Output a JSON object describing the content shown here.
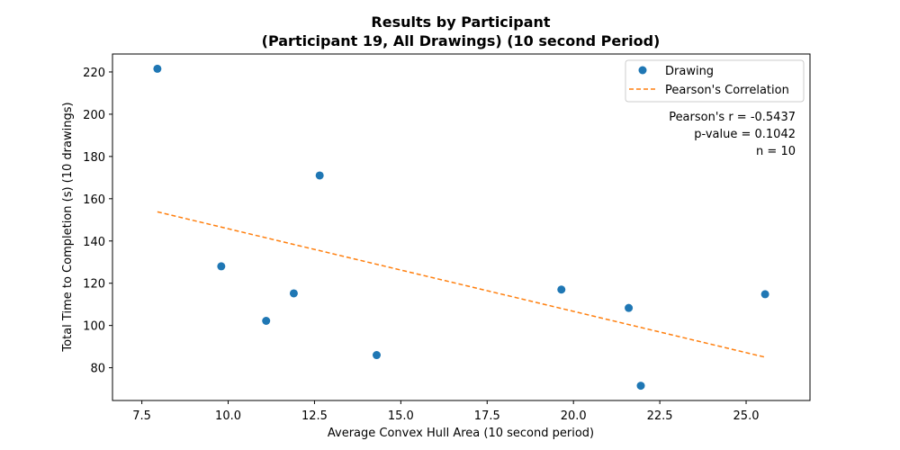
{
  "chart_data": {
    "type": "scatter",
    "title_line1": "Results by Participant",
    "title_line2": "(Participant 19, All Drawings) (10 second Period)",
    "xlabel": "Average Convex Hull Area (10 second period)",
    "ylabel": "Total Time to Completion (s) (10 drawings)",
    "xlim": [
      6.65,
      26.85
    ],
    "ylim": [
      64.5,
      228.5
    ],
    "xticks": [
      7.5,
      10.0,
      12.5,
      15.0,
      17.5,
      20.0,
      22.5,
      25.0
    ],
    "xtick_labels": [
      "7.5",
      "10.0",
      "12.5",
      "15.0",
      "17.5",
      "20.0",
      "22.5",
      "25.0"
    ],
    "yticks": [
      80,
      100,
      120,
      140,
      160,
      180,
      200,
      220
    ],
    "ytick_labels": [
      "80",
      "100",
      "120",
      "140",
      "160",
      "180",
      "200",
      "220"
    ],
    "series": [
      {
        "name": "Drawing",
        "type": "scatter",
        "color": "#1f77b4",
        "points": [
          {
            "x": 7.95,
            "y": 221.5
          },
          {
            "x": 9.8,
            "y": 128.0
          },
          {
            "x": 11.1,
            "y": 102.2
          },
          {
            "x": 11.9,
            "y": 115.2
          },
          {
            "x": 12.65,
            "y": 171.0
          },
          {
            "x": 14.3,
            "y": 86.0
          },
          {
            "x": 19.65,
            "y": 117.0
          },
          {
            "x": 21.6,
            "y": 108.3
          },
          {
            "x": 21.95,
            "y": 71.5
          },
          {
            "x": 25.55,
            "y": 114.8
          }
        ]
      },
      {
        "name": "Pearson's Correlation",
        "type": "line",
        "style": "dashed",
        "color": "#ff7f0e",
        "points": [
          {
            "x": 7.95,
            "y": 153.8
          },
          {
            "x": 25.55,
            "y": 85.0
          }
        ]
      }
    ],
    "legend": {
      "position": "top-right",
      "entries": [
        "Drawing",
        "Pearson's Correlation"
      ]
    },
    "annotations": [
      "Pearson's r = -0.5437",
      "p-value = 0.1042",
      "n = 10"
    ],
    "grid": false
  }
}
